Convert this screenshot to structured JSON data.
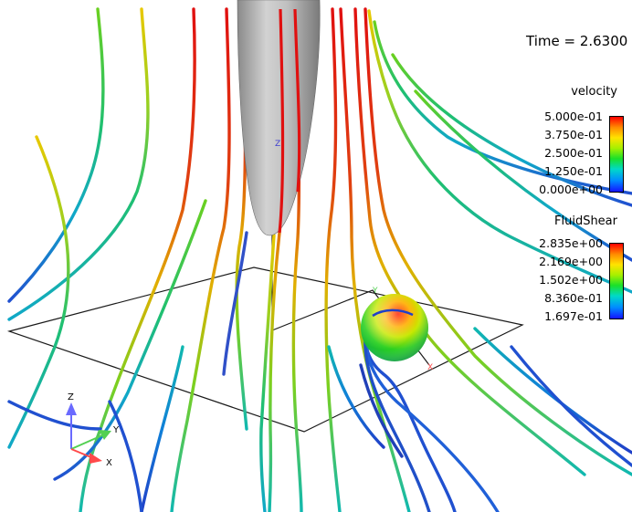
{
  "viewer": {
    "time_readout": "Time = 2.6300",
    "background": "#ffffff"
  },
  "legends": [
    {
      "title": "velocity",
      "ticks": [
        "5.000e-01",
        "3.750e-01",
        "2.500e-01",
        "1.250e-01",
        "0.000e+00"
      ],
      "colormap": [
        "#ff0000",
        "#ff8a00",
        "#ffe300",
        "#19e02a",
        "#00d9c8",
        "#1414ff"
      ]
    },
    {
      "title": "FluidShear",
      "ticks": [
        "2.835e+00",
        "2.169e+00",
        "1.502e+00",
        "8.360e-01",
        "1.697e-01"
      ],
      "colormap": [
        "#ff0000",
        "#ff8a00",
        "#ffe300",
        "#19e02a",
        "#00d9c8",
        "#1414ff"
      ]
    }
  ],
  "axes": {
    "triad_labels": [
      "Z",
      "Y",
      "X"
    ],
    "scene_labels": [
      "Z",
      "Y",
      "X"
    ],
    "colors": {
      "x": "#ff4a4a",
      "y": "#52d052",
      "z": "#6a6aff"
    }
  },
  "scene": {
    "objects": [
      "needle-tip",
      "sphere",
      "streamlines",
      "domain-outline"
    ]
  }
}
